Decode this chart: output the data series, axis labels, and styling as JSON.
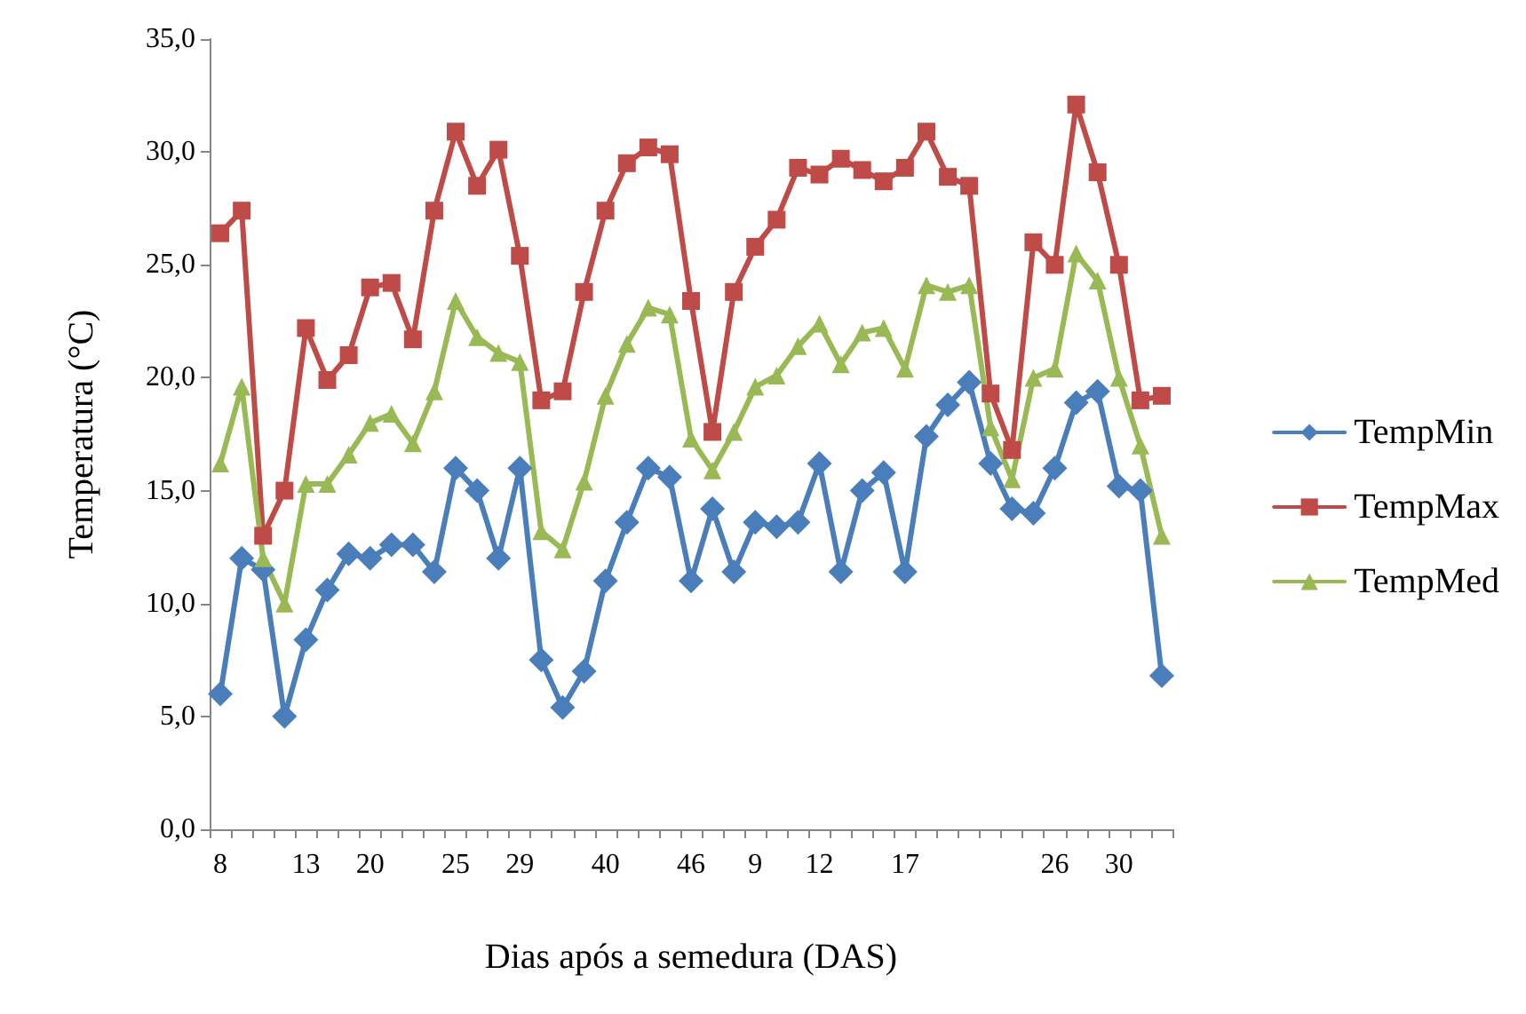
{
  "chart_data": {
    "type": "line",
    "xlabel": "Dias após a semedura (DAS)",
    "ylabel": "Temperatura (°C)",
    "categories": [
      "8",
      null,
      null,
      null,
      "13",
      null,
      null,
      "20",
      null,
      null,
      null,
      "25",
      null,
      null,
      "29",
      null,
      null,
      null,
      "40",
      null,
      null,
      null,
      "46",
      null,
      null,
      "9",
      null,
      null,
      "12",
      null,
      null,
      null,
      "17",
      null,
      null,
      null,
      null,
      null,
      null,
      "26",
      null,
      null,
      "30",
      null,
      null
    ],
    "ylim": [
      0,
      35
    ],
    "yticks": [
      {
        "value": 0,
        "label": "0,0"
      },
      {
        "value": 5,
        "label": "5,0"
      },
      {
        "value": 10,
        "label": "10,0"
      },
      {
        "value": 15,
        "label": "15,0"
      },
      {
        "value": 20,
        "label": "20,0"
      },
      {
        "value": 25,
        "label": "25,0"
      },
      {
        "value": 30,
        "label": "30,0"
      },
      {
        "value": 35,
        "label": "35,0"
      }
    ],
    "grid": false,
    "legend": "right",
    "line_style": "solid",
    "series": [
      {
        "name": "TempMin",
        "color": "#4a7ebb",
        "marker": "diamond",
        "values": [
          6,
          12,
          11.5,
          5,
          8.4,
          10.6,
          12.2,
          12,
          12.6,
          12.6,
          11.4,
          16,
          15,
          12,
          16,
          7.5,
          5.4,
          7,
          11,
          13.6,
          16,
          15.6,
          11,
          14.2,
          11.4,
          13.6,
          13.4,
          13.6,
          16.2,
          11.4,
          15,
          15.8,
          11.4,
          17.4,
          18.8,
          19.8,
          16.2,
          14.2,
          14,
          16,
          18.9,
          19.4,
          15.2,
          15,
          6.8
        ]
      },
      {
        "name": "TempMax",
        "color": "#be4b48",
        "marker": "square",
        "values": [
          26.4,
          27.4,
          13,
          15,
          22.2,
          19.9,
          21,
          24,
          24.2,
          21.7,
          27.4,
          30.9,
          28.5,
          30.1,
          25.4,
          19,
          19.4,
          23.8,
          27.4,
          29.5,
          30.2,
          29.9,
          23.4,
          17.6,
          23.8,
          25.8,
          27,
          29.3,
          29,
          29.7,
          29.2,
          28.7,
          29.3,
          30.9,
          28.9,
          28.5,
          19.3,
          16.8,
          26,
          25,
          32.1,
          29.1,
          25,
          19,
          19.2
        ]
      },
      {
        "name": "TempMed",
        "color": "#98b954",
        "marker": "triangle",
        "values": [
          16.2,
          19.6,
          12,
          10,
          15.3,
          15.3,
          16.6,
          18,
          18.4,
          17.1,
          19.4,
          23.4,
          21.8,
          21.1,
          20.7,
          13.2,
          12.4,
          15.4,
          19.2,
          21.5,
          23.1,
          22.8,
          17.3,
          15.9,
          17.6,
          19.6,
          20.1,
          21.4,
          22.4,
          20.6,
          22,
          22.2,
          20.4,
          24.1,
          23.8,
          24.1,
          17.8,
          15.5,
          20,
          20.4,
          25.5,
          24.3,
          20,
          17,
          13
        ]
      }
    ]
  }
}
